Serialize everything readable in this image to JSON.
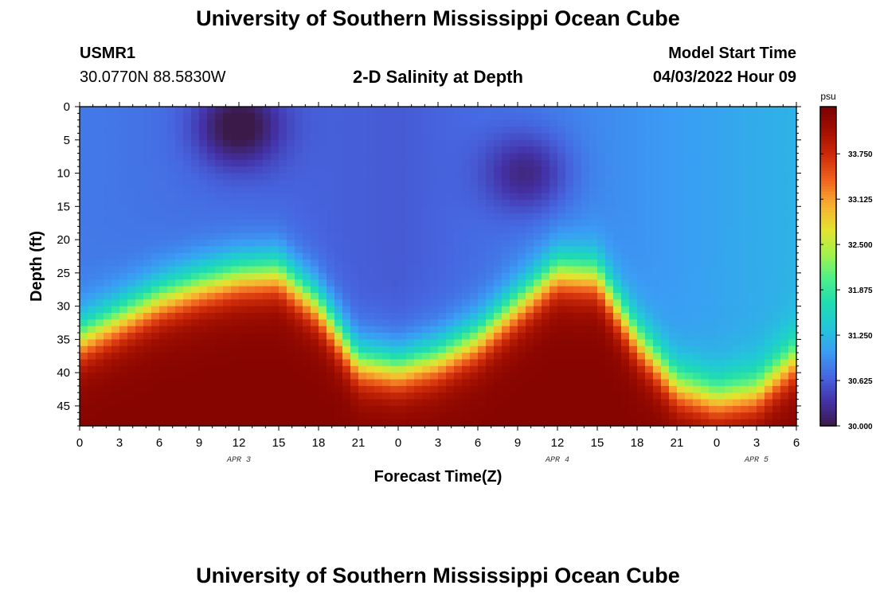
{
  "header": {
    "title": "University of Southern Mississippi Ocean Cube",
    "station_id": "USMR1",
    "station_coords": "30.0770N  88.5830W",
    "plot_title": "2-D Salinity at Depth",
    "model_start_label": "Model Start Time",
    "model_start_value": "04/03/2022 Hour 09"
  },
  "footer": {
    "title": "University of Southern Mississippi Ocean Cube"
  },
  "chart_data": {
    "type": "heatmap",
    "title": "2-D Salinity at Depth",
    "xlabel": "Forecast Time(Z)",
    "ylabel": "Depth (ft)",
    "x_ticks": [
      "0",
      "3",
      "6",
      "9",
      "12",
      "15",
      "18",
      "21",
      "0",
      "3",
      "6",
      "9",
      "12",
      "15",
      "18",
      "21",
      "0",
      "3",
      "6"
    ],
    "x_range_hours": [
      0,
      54
    ],
    "day_labels": [
      {
        "label": "APR 3",
        "hour": 12
      },
      {
        "label": "APR 4",
        "hour": 36
      },
      {
        "label": "APR 5",
        "hour": 51
      }
    ],
    "y_ticks": [
      "0",
      "5",
      "10",
      "15",
      "20",
      "25",
      "30",
      "35",
      "40",
      "45"
    ],
    "y_range": [
      0,
      48
    ],
    "colorbar": {
      "unit": "psu",
      "ticks": [
        "33.750",
        "33.125",
        "32.500",
        "31.875",
        "31.250",
        "30.625",
        "30.000"
      ],
      "range": [
        30.0,
        34.4
      ],
      "colors": [
        "#3b1a4a",
        "#4432a8",
        "#4666e0",
        "#3b9cf5",
        "#22c7d8",
        "#1fdcb0",
        "#4ef08a",
        "#a3f24a",
        "#e5e22f",
        "#f6ae30",
        "#f0641e",
        "#cf2c0a",
        "#a31000",
        "#7a0000"
      ]
    },
    "halocline_depth_ft": [
      {
        "hour": 0,
        "depth": 35
      },
      {
        "hour": 3,
        "depth": 32
      },
      {
        "hour": 6,
        "depth": 29
      },
      {
        "hour": 9,
        "depth": 27
      },
      {
        "hour": 12,
        "depth": 25.5
      },
      {
        "hour": 15,
        "depth": 25
      },
      {
        "hour": 18,
        "depth": 30
      },
      {
        "hour": 21,
        "depth": 38.5
      },
      {
        "hour": 24,
        "depth": 39.5
      },
      {
        "hour": 27,
        "depth": 38
      },
      {
        "hour": 30,
        "depth": 35
      },
      {
        "hour": 33,
        "depth": 30
      },
      {
        "hour": 36,
        "depth": 25
      },
      {
        "hour": 39,
        "depth": 25.5
      },
      {
        "hour": 42,
        "depth": 35
      },
      {
        "hour": 45,
        "depth": 42
      },
      {
        "hour": 48,
        "depth": 44
      },
      {
        "hour": 51,
        "depth": 43
      },
      {
        "hour": 54,
        "depth": 38
      }
    ],
    "low_salinity_cores": [
      {
        "hour": 12,
        "depth": 3,
        "value": 29.9
      },
      {
        "hour": 33.5,
        "depth": 10,
        "value": 30.2
      }
    ],
    "surface_salinity_psu": [
      {
        "hour": 0,
        "value": 30.8
      },
      {
        "hour": 24,
        "value": 30.6
      },
      {
        "hour": 54,
        "value": 31.2
      }
    ],
    "bottom_salinity_psu": 34.3
  }
}
